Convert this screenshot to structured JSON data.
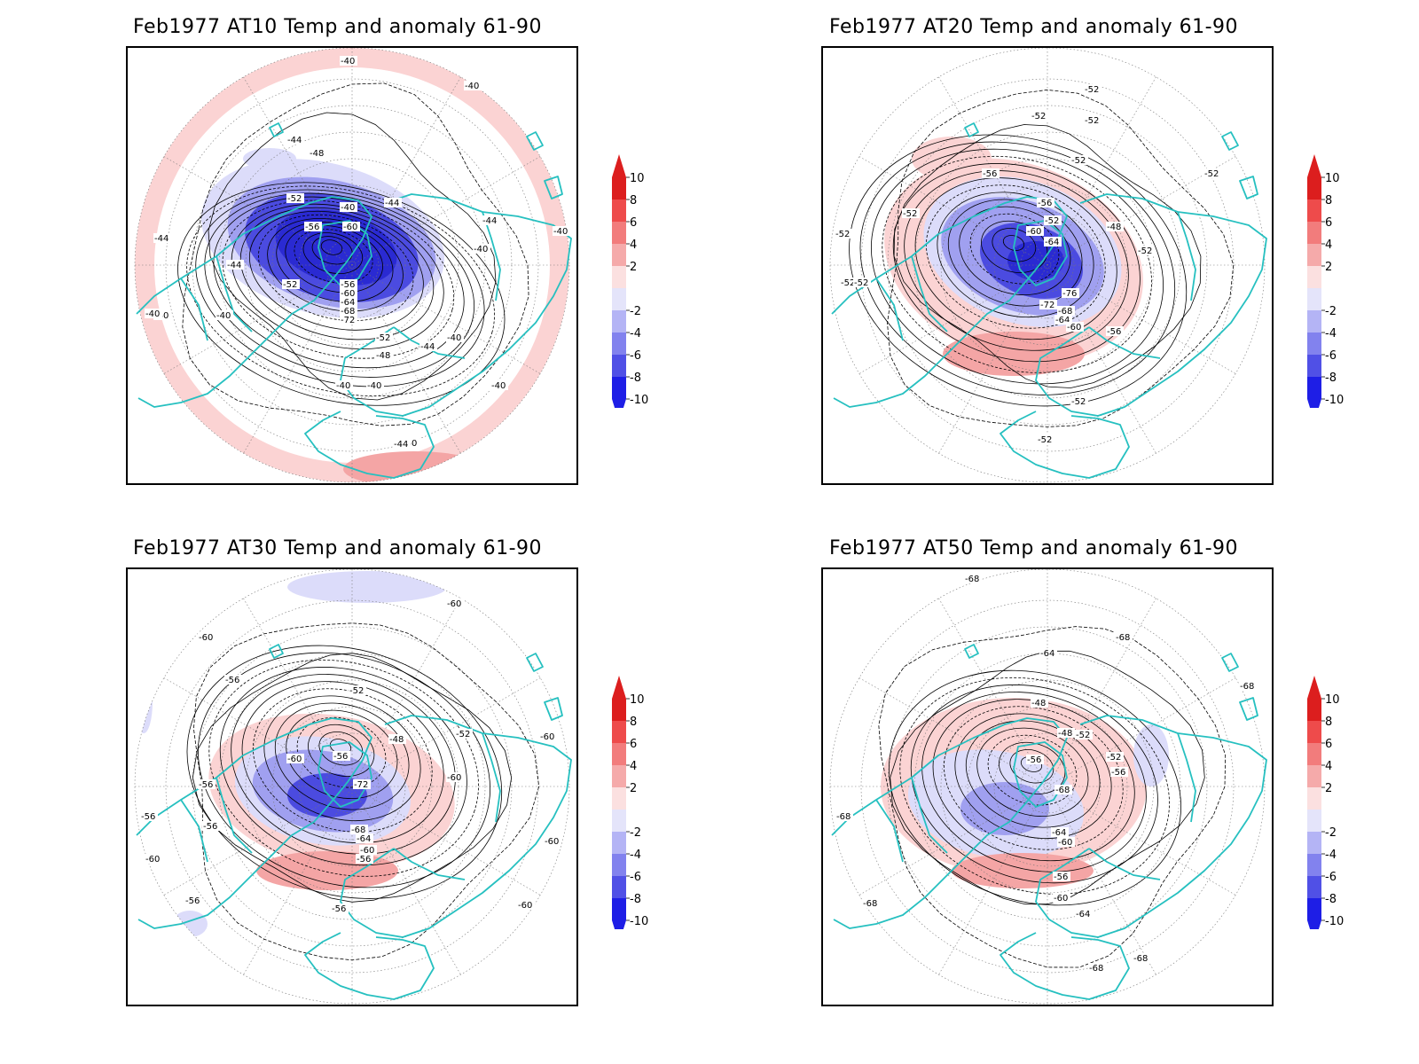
{
  "panels": [
    {
      "title": "Feb1977 AT10 Temp and anomaly 61-90",
      "contour_labels": [
        "-40",
        "-40",
        "-44",
        "-48",
        "-52",
        "-56",
        "-60",
        "-44",
        "-44",
        "-44",
        "-44",
        "-40",
        "-40",
        "-40",
        "-40",
        "-52",
        "-56",
        "-60",
        "-64",
        "-68",
        "-72",
        "-52",
        "-48",
        "-44",
        "-40",
        "-40",
        "-40",
        "-40",
        "-40",
        "-44",
        "-40",
        "-40"
      ],
      "anomaly_pattern": "strong-cold-core"
    },
    {
      "title": "Feb1977 AT20 Temp and anomaly 61-90",
      "contour_labels": [
        "-52",
        "-52",
        "-52",
        "-52",
        "-56",
        "-52",
        "-52",
        "-52",
        "-52",
        "-60",
        "-64",
        "-56",
        "-52",
        "-48",
        "-52",
        "-76",
        "-72",
        "-68",
        "-64",
        "-60",
        "-56",
        "-52",
        "-52",
        "-52"
      ],
      "anomaly_pattern": "cold-core-warm-south"
    },
    {
      "title": "Feb1977 AT30 Temp and anomaly 61-90",
      "contour_labels": [
        "-60",
        "-60",
        "-56",
        "-52",
        "-48",
        "-52",
        "-60",
        "-56",
        "-56",
        "-60",
        "-56",
        "-56",
        "-72",
        "-68",
        "-64",
        "-60",
        "-56",
        "-56",
        "-56",
        "-60",
        "-60",
        "-60",
        "-60"
      ],
      "anomaly_pattern": "moderate-cold-warm-south"
    },
    {
      "title": "Feb1977 AT50 Temp and anomaly 61-90",
      "contour_labels": [
        "-68",
        "-68",
        "-64",
        "-48",
        "-48",
        "-52",
        "-56",
        "-52",
        "-56",
        "-68",
        "-64",
        "-60",
        "-56",
        "-60",
        "-64",
        "-68",
        "-68",
        "-68",
        "-68",
        "-68"
      ],
      "anomaly_pattern": "weak-cold-warm-south"
    }
  ],
  "colorbar": {
    "labels": [
      "10",
      "8",
      "6",
      "4",
      "2",
      "-2",
      "-4",
      "-6",
      "-8",
      "-10"
    ],
    "colors": [
      "#dc1e1e",
      "#ee4b4b",
      "#f27c7c",
      "#f5aaaa",
      "#fbe0e0",
      "#e4e4fa",
      "#b4b4f5",
      "#8282ee",
      "#5050e6",
      "#1e1ee6"
    ]
  },
  "colors": {
    "coastline": "#26c0c0",
    "contour": "#000000",
    "warm_light": "#fbd3d3",
    "warm_medium": "#f4a5a5",
    "cold_light": "#dcdcfa",
    "cold_medium": "#a0a0f0",
    "cold_strong": "#4b4be0",
    "cold_deep": "#2a2ad2"
  }
}
